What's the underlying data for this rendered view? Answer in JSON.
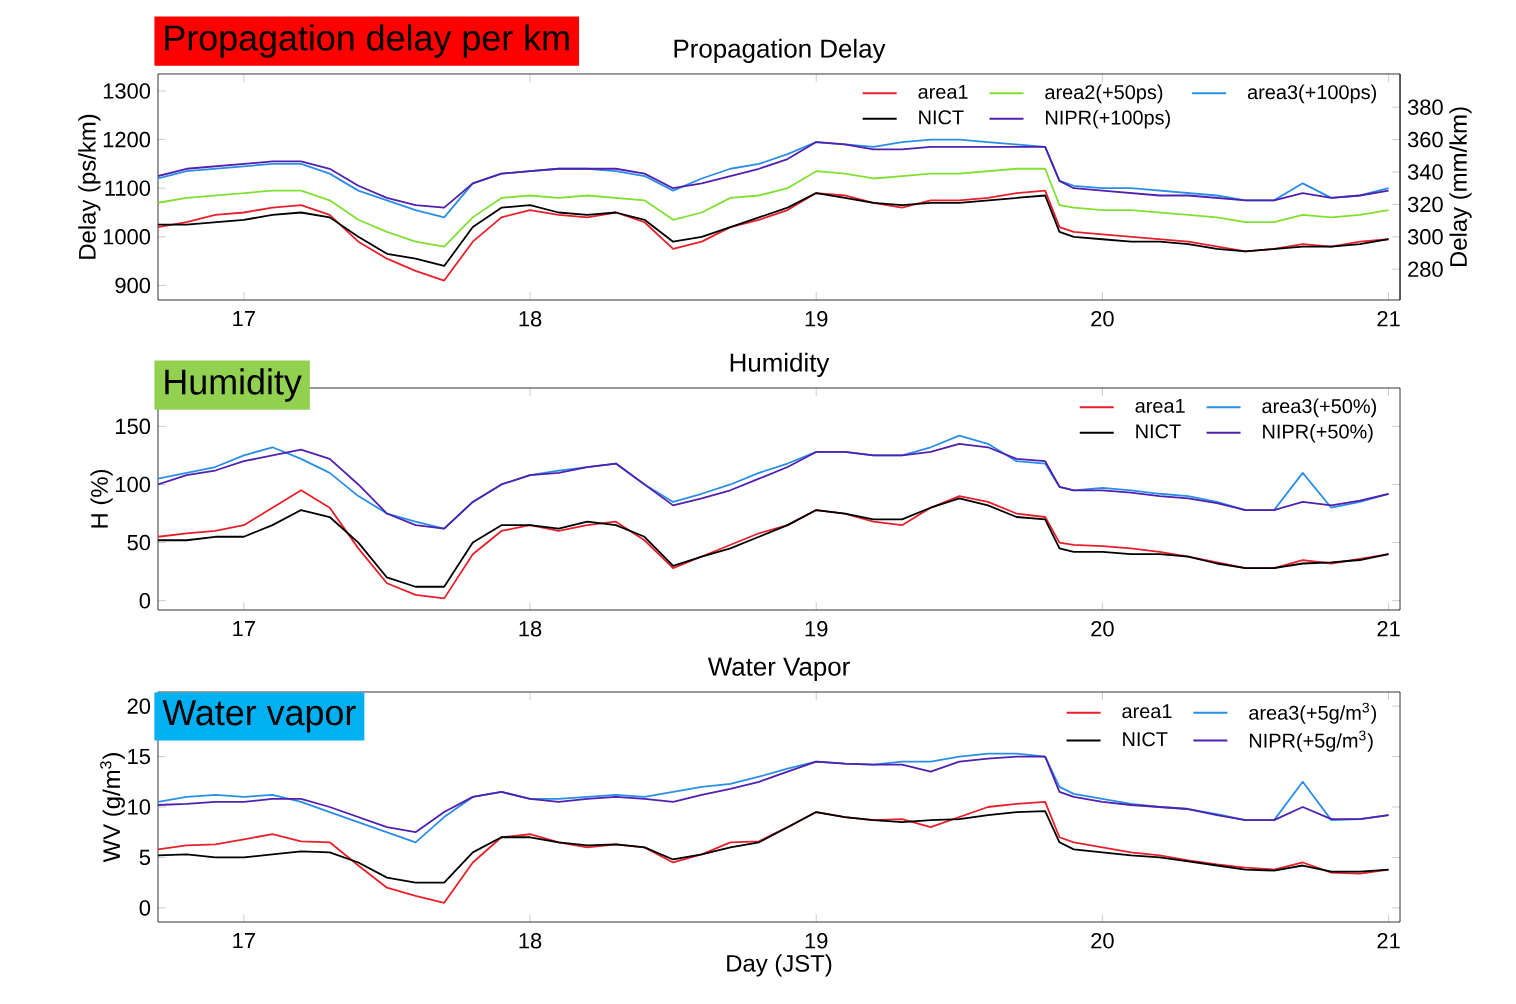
{
  "chart_data": [
    {
      "type": "line",
      "title": "Propagation Delay",
      "ylabel": "Delay (ps/km)",
      "y2label": "Delay (mm/km)",
      "annotations": [
        "Propagation delay per km"
      ],
      "legend": "top right",
      "xlim": [
        16.7,
        21.04
      ],
      "xticks": [
        17,
        18,
        19,
        20,
        21
      ],
      "ylim": [
        870,
        1335
      ],
      "yticks": [
        900,
        1000,
        1100,
        1200,
        1300
      ],
      "y2lim": [
        261,
        400.5
      ],
      "y2ticks": [
        280,
        300,
        320,
        340,
        360,
        380
      ],
      "x": [
        16.7,
        16.8,
        16.9,
        17.0,
        17.1,
        17.2,
        17.3,
        17.4,
        17.5,
        17.6,
        17.7,
        17.8,
        17.9,
        18.0,
        18.1,
        18.2,
        18.3,
        18.4,
        18.5,
        18.6,
        18.7,
        18.8,
        18.9,
        19.0,
        19.1,
        19.2,
        19.3,
        19.4,
        19.5,
        19.6,
        19.7,
        19.8,
        19.85,
        19.9,
        20.0,
        20.1,
        20.2,
        20.3,
        20.4,
        20.5,
        20.6,
        20.7,
        20.8,
        20.9,
        21.0
      ],
      "series": [
        {
          "name": "area1",
          "color": "#e8202a",
          "values": [
            1020,
            1030,
            1045,
            1050,
            1060,
            1065,
            1045,
            990,
            955,
            930,
            910,
            990,
            1040,
            1055,
            1045,
            1040,
            1050,
            1030,
            975,
            990,
            1020,
            1035,
            1055,
            1090,
            1085,
            1070,
            1060,
            1075,
            1075,
            1080,
            1090,
            1095,
            1020,
            1010,
            1005,
            1000,
            995,
            990,
            980,
            970,
            975,
            985,
            980,
            990,
            995
          ]
        },
        {
          "name": "area2(+50ps)",
          "color": "#80e030",
          "values": [
            1070,
            1080,
            1085,
            1090,
            1095,
            1095,
            1075,
            1035,
            1010,
            990,
            980,
            1040,
            1080,
            1085,
            1080,
            1085,
            1080,
            1075,
            1035,
            1050,
            1080,
            1085,
            1100,
            1135,
            1130,
            1120,
            1125,
            1130,
            1130,
            1135,
            1140,
            1140,
            1065,
            1060,
            1055,
            1055,
            1050,
            1045,
            1040,
            1030,
            1030,
            1045,
            1040,
            1045,
            1055
          ]
        },
        {
          "name": "area3(+100ps)",
          "color": "#2a8ee8",
          "values": [
            1120,
            1135,
            1140,
            1145,
            1150,
            1150,
            1130,
            1095,
            1075,
            1055,
            1040,
            1110,
            1130,
            1135,
            1140,
            1140,
            1135,
            1125,
            1095,
            1120,
            1140,
            1150,
            1170,
            1195,
            1190,
            1185,
            1195,
            1200,
            1200,
            1195,
            1190,
            1185,
            1115,
            1105,
            1100,
            1100,
            1095,
            1090,
            1085,
            1075,
            1075,
            1110,
            1080,
            1085,
            1100
          ]
        },
        {
          "name": "NICT",
          "color": "#000000",
          "values": [
            1025,
            1025,
            1030,
            1035,
            1045,
            1050,
            1040,
            1000,
            965,
            955,
            940,
            1020,
            1060,
            1065,
            1050,
            1045,
            1050,
            1035,
            990,
            1000,
            1020,
            1040,
            1060,
            1090,
            1080,
            1070,
            1065,
            1070,
            1070,
            1075,
            1080,
            1085,
            1010,
            1000,
            995,
            990,
            990,
            985,
            975,
            970,
            975,
            980,
            980,
            985,
            995
          ]
        },
        {
          "name": "NIPR(+100ps)",
          "color": "#5020b0",
          "values": [
            1125,
            1140,
            1145,
            1150,
            1155,
            1155,
            1140,
            1105,
            1080,
            1065,
            1060,
            1110,
            1130,
            1135,
            1140,
            1140,
            1140,
            1130,
            1100,
            1110,
            1125,
            1140,
            1160,
            1195,
            1190,
            1180,
            1180,
            1185,
            1185,
            1185,
            1185,
            1185,
            1115,
            1100,
            1095,
            1090,
            1085,
            1085,
            1080,
            1075,
            1075,
            1090,
            1080,
            1085,
            1095
          ]
        }
      ]
    },
    {
      "type": "line",
      "title": "Humidity",
      "ylabel": "H (%)",
      "annotations": [
        "Humidity"
      ],
      "legend": "top right",
      "xlim": [
        16.7,
        21.04
      ],
      "xticks": [
        17,
        18,
        19,
        20,
        21
      ],
      "ylim": [
        -8,
        183
      ],
      "yticks": [
        0,
        50,
        100,
        150
      ],
      "x": [
        16.7,
        16.8,
        16.9,
        17.0,
        17.1,
        17.2,
        17.3,
        17.4,
        17.5,
        17.6,
        17.7,
        17.8,
        17.9,
        18.0,
        18.1,
        18.2,
        18.3,
        18.4,
        18.5,
        18.6,
        18.7,
        18.8,
        18.9,
        19.0,
        19.1,
        19.2,
        19.3,
        19.4,
        19.5,
        19.6,
        19.7,
        19.8,
        19.85,
        19.9,
        20.0,
        20.1,
        20.2,
        20.3,
        20.4,
        20.5,
        20.6,
        20.7,
        20.8,
        20.9,
        21.0
      ],
      "series": [
        {
          "name": "area1",
          "color": "#e8202a",
          "values": [
            55,
            58,
            60,
            65,
            80,
            95,
            80,
            45,
            15,
            5,
            2,
            40,
            60,
            65,
            60,
            65,
            68,
            52,
            28,
            38,
            48,
            58,
            65,
            78,
            75,
            68,
            65,
            80,
            90,
            85,
            75,
            72,
            50,
            48,
            47,
            45,
            42,
            38,
            33,
            28,
            28,
            35,
            32,
            36,
            40
          ]
        },
        {
          "name": "area3(+50%)",
          "color": "#2a8ee8",
          "values": [
            105,
            110,
            115,
            125,
            132,
            122,
            110,
            90,
            75,
            68,
            62,
            85,
            100,
            108,
            112,
            115,
            118,
            100,
            85,
            92,
            100,
            110,
            118,
            128,
            128,
            125,
            125,
            132,
            142,
            135,
            120,
            118,
            98,
            95,
            97,
            95,
            92,
            90,
            85,
            78,
            78,
            110,
            80,
            85,
            92
          ]
        },
        {
          "name": "NICT",
          "color": "#000000",
          "values": [
            52,
            52,
            55,
            55,
            65,
            78,
            72,
            50,
            20,
            12,
            12,
            50,
            65,
            65,
            62,
            68,
            65,
            55,
            30,
            38,
            45,
            55,
            65,
            78,
            75,
            70,
            70,
            80,
            88,
            82,
            72,
            70,
            45,
            42,
            42,
            40,
            40,
            38,
            32,
            28,
            28,
            32,
            33,
            35,
            40
          ]
        },
        {
          "name": "NIPR(+50%)",
          "color": "#5020b0",
          "values": [
            100,
            108,
            112,
            120,
            125,
            130,
            122,
            100,
            75,
            65,
            62,
            85,
            100,
            108,
            110,
            115,
            118,
            100,
            82,
            88,
            95,
            105,
            115,
            128,
            128,
            125,
            125,
            128,
            135,
            132,
            122,
            120,
            98,
            95,
            95,
            93,
            90,
            88,
            84,
            78,
            78,
            85,
            82,
            86,
            92
          ]
        }
      ]
    },
    {
      "type": "line",
      "title": "Water Vapor",
      "ylabel": "WV (g/m$^{3}$)",
      "xlabel": "Day (JST)",
      "annotations": [
        "Water vapor"
      ],
      "legend": "top right",
      "xlim": [
        16.7,
        21.04
      ],
      "xticks": [
        17,
        18,
        19,
        20,
        21
      ],
      "ylim": [
        -1.4,
        21.4
      ],
      "yticks": [
        0,
        5,
        10,
        15,
        20
      ],
      "x": [
        16.7,
        16.8,
        16.9,
        17.0,
        17.1,
        17.2,
        17.3,
        17.4,
        17.5,
        17.6,
        17.7,
        17.8,
        17.9,
        18.0,
        18.1,
        18.2,
        18.3,
        18.4,
        18.5,
        18.6,
        18.7,
        18.8,
        18.9,
        19.0,
        19.1,
        19.2,
        19.3,
        19.4,
        19.5,
        19.6,
        19.7,
        19.8,
        19.85,
        19.9,
        20.0,
        20.1,
        20.2,
        20.3,
        20.4,
        20.5,
        20.6,
        20.7,
        20.8,
        20.9,
        21.0
      ],
      "series": [
        {
          "name": "area1",
          "color": "#e8202a",
          "values": [
            5.8,
            6.2,
            6.3,
            6.8,
            7.3,
            6.6,
            6.5,
            4.2,
            2,
            1.2,
            0.5,
            4.5,
            7,
            7.3,
            6.5,
            6,
            6.3,
            6,
            4.5,
            5.3,
            6.5,
            6.6,
            8,
            9.5,
            9,
            8.7,
            8.8,
            8,
            9,
            10,
            10.3,
            10.5,
            7,
            6.5,
            6,
            5.5,
            5.2,
            4.7,
            4.3,
            4,
            3.8,
            4.5,
            3.5,
            3.4,
            3.8
          ]
        },
        {
          "name": "area3(+5g/m$^{3}$)",
          "color": "#2a8ee8",
          "values": [
            10.5,
            11,
            11.2,
            11,
            11.2,
            10.5,
            9.5,
            8.5,
            7.5,
            6.5,
            9,
            11,
            11.5,
            10.8,
            10.8,
            11,
            11.2,
            11,
            11.5,
            12,
            12.3,
            13,
            13.8,
            14.5,
            14.3,
            14.2,
            14.5,
            14.5,
            15,
            15.3,
            15.3,
            15,
            12,
            11.3,
            10.8,
            10.3,
            10,
            9.8,
            9.3,
            8.7,
            8.7,
            12.5,
            8.7,
            8.8,
            9.2
          ]
        },
        {
          "name": "NICT",
          "color": "#000000",
          "values": [
            5.2,
            5.3,
            5,
            5,
            5.3,
            5.6,
            5.5,
            4.5,
            3,
            2.5,
            2.5,
            5.5,
            7,
            7,
            6.5,
            6.2,
            6.3,
            6,
            4.8,
            5.3,
            6,
            6.5,
            8,
            9.5,
            9,
            8.7,
            8.5,
            8.7,
            8.8,
            9.2,
            9.5,
            9.6,
            6.5,
            5.8,
            5.5,
            5.2,
            5,
            4.6,
            4.2,
            3.8,
            3.7,
            4.2,
            3.6,
            3.6,
            3.8
          ]
        },
        {
          "name": "NIPR(+5g/m$^{3}$)",
          "color": "#5020b0",
          "values": [
            10.2,
            10.3,
            10.5,
            10.5,
            10.8,
            10.8,
            10,
            9,
            8,
            7.5,
            9.5,
            11,
            11.5,
            10.8,
            10.5,
            10.8,
            11,
            10.8,
            10.5,
            11.2,
            11.8,
            12.5,
            13.5,
            14.5,
            14.3,
            14.2,
            14.2,
            13.5,
            14.5,
            14.8,
            15,
            15,
            11.5,
            11,
            10.5,
            10.2,
            10,
            9.8,
            9.2,
            8.7,
            8.7,
            10,
            8.8,
            8.8,
            9.2
          ]
        }
      ]
    }
  ]
}
